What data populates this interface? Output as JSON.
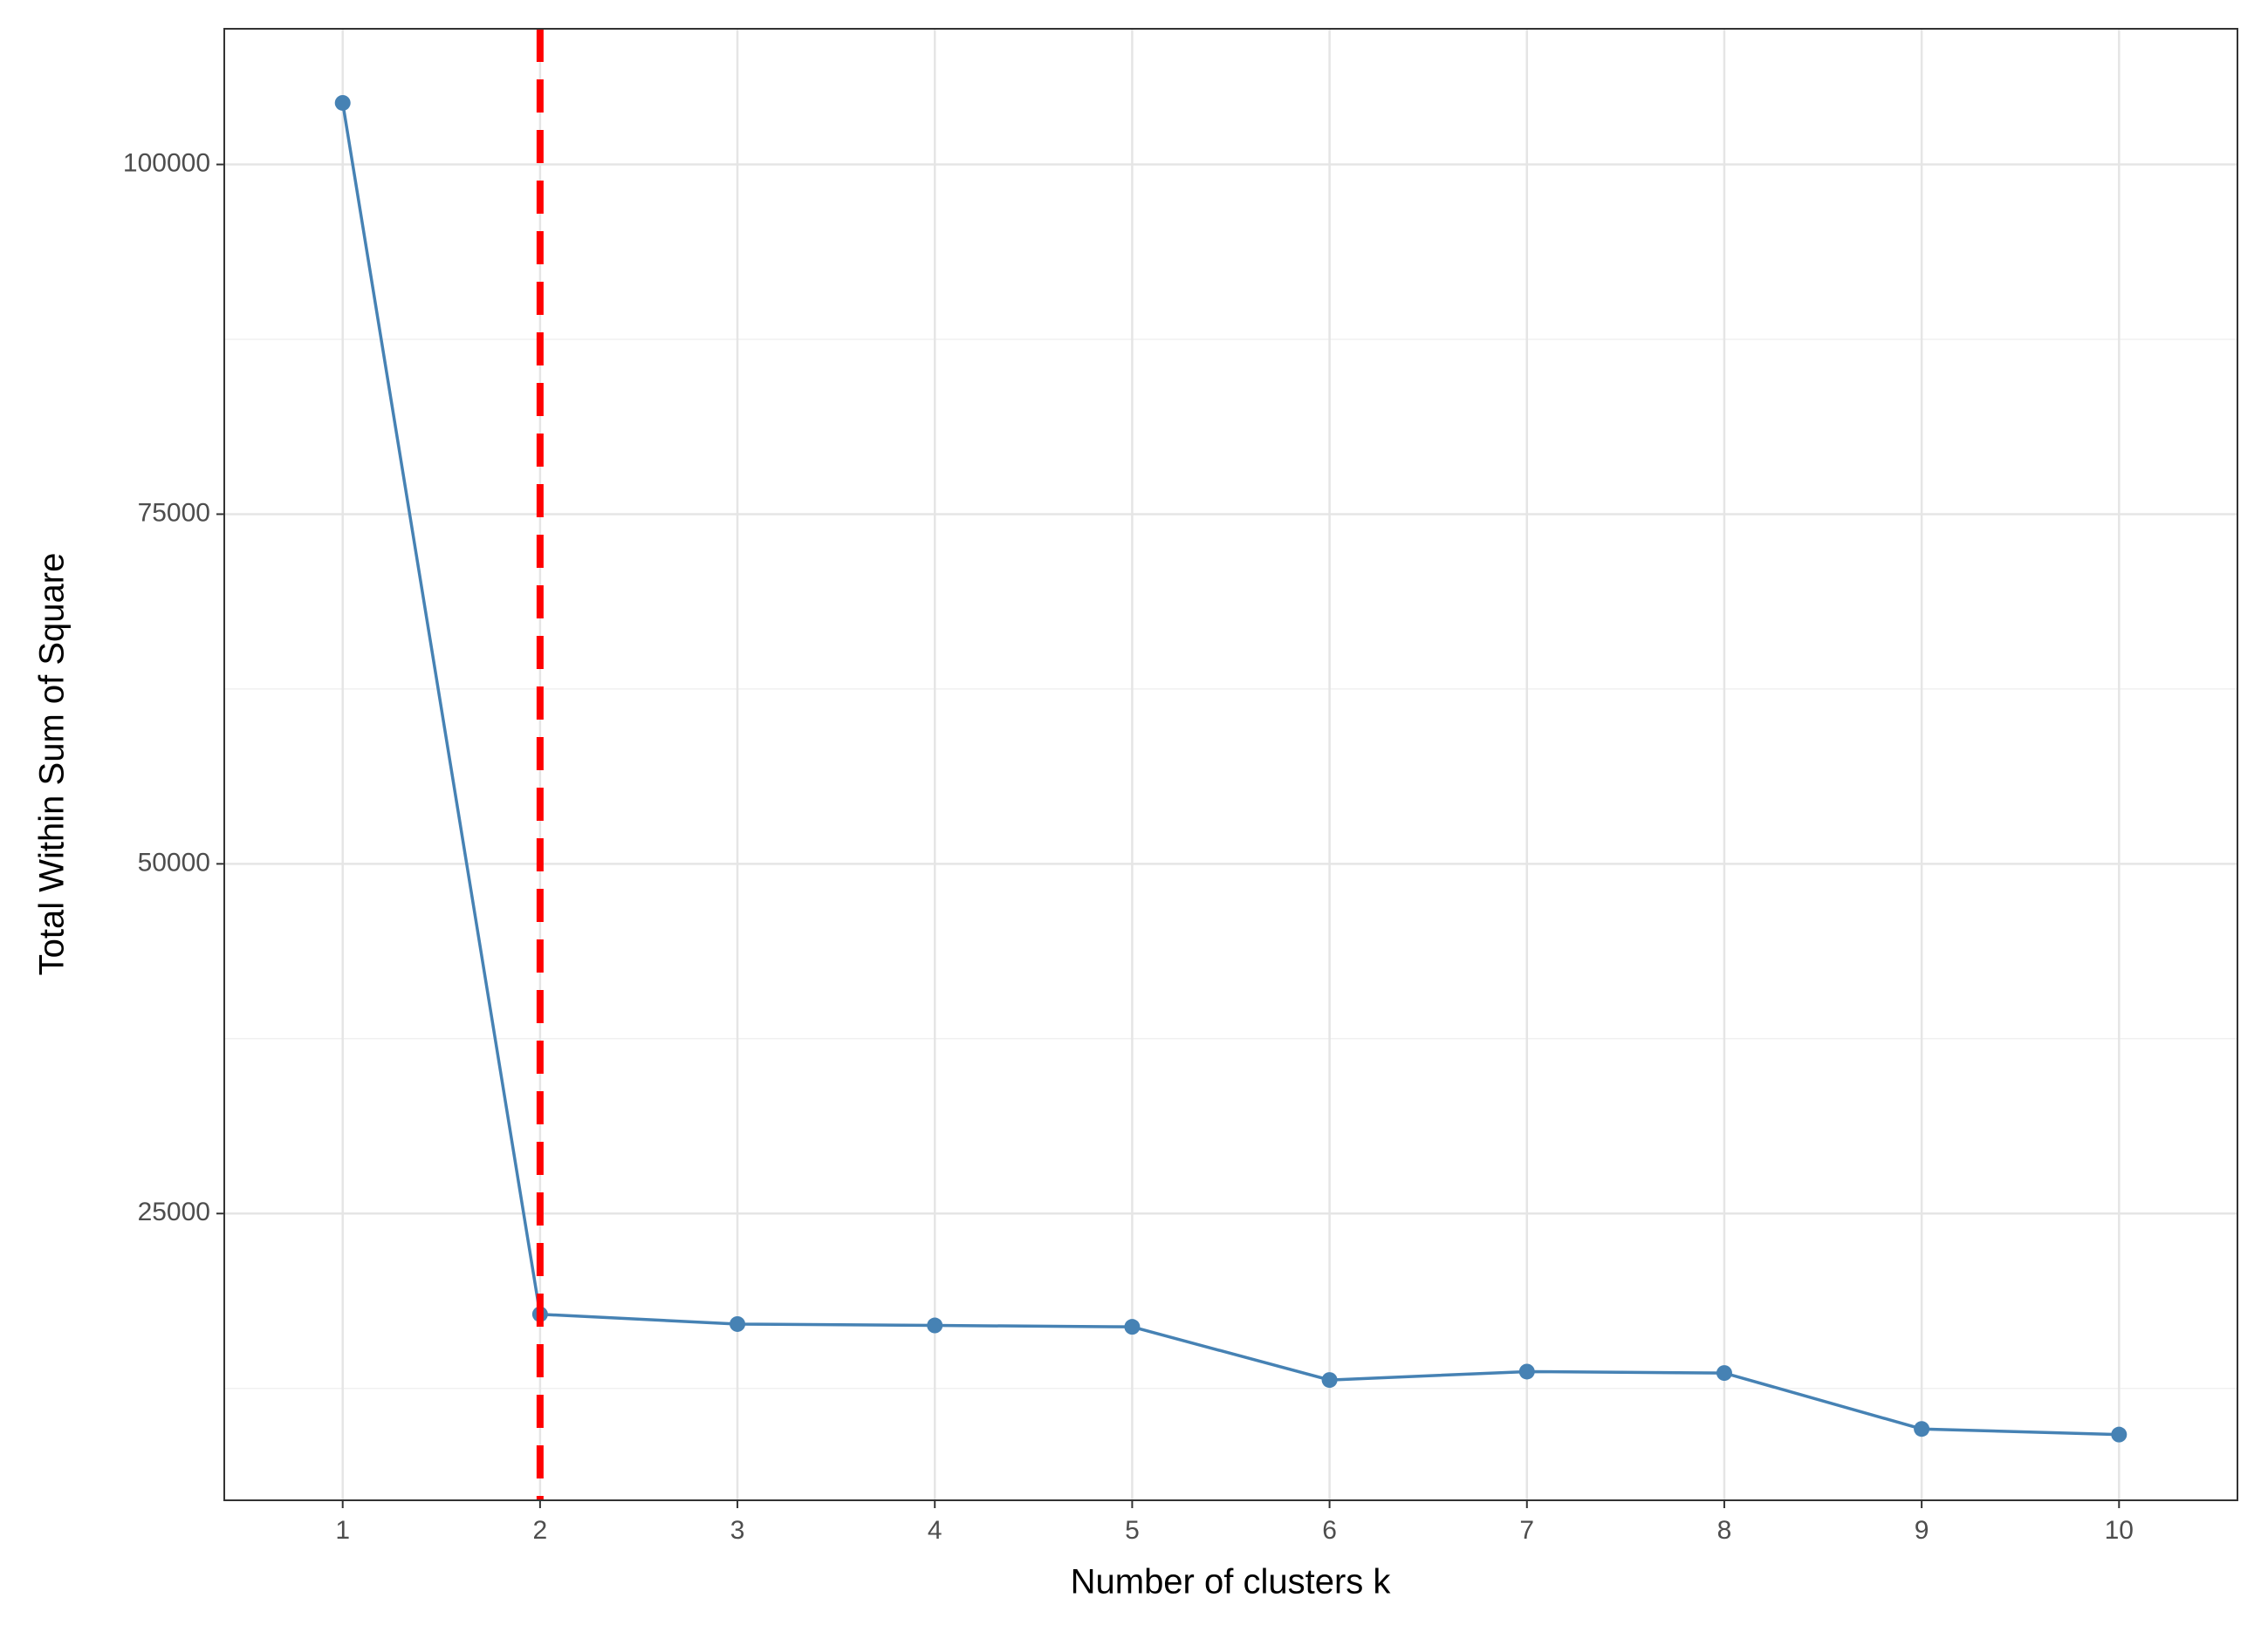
{
  "chart_data": {
    "type": "line",
    "x_label": "Number of clusters k",
    "y_label": "Total Within Sum of Square",
    "x": [
      1,
      2,
      3,
      4,
      5,
      6,
      7,
      8,
      9,
      10
    ],
    "series": [
      {
        "color": "#4682b4",
        "values": [
          104400,
          17800,
          17100,
          17000,
          16900,
          13100,
          13700,
          13600,
          9600,
          9200
        ]
      }
    ],
    "vline": 2,
    "vline_color": "#ff0000",
    "xlim": [
      0.4,
      10.6
    ],
    "xticks": [
      1,
      2,
      3,
      4,
      5,
      6,
      7,
      8,
      9,
      10
    ],
    "ylim": [
      4500,
      109700
    ],
    "yticks": [
      25000,
      50000,
      75000,
      100000
    ],
    "grid": true
  }
}
